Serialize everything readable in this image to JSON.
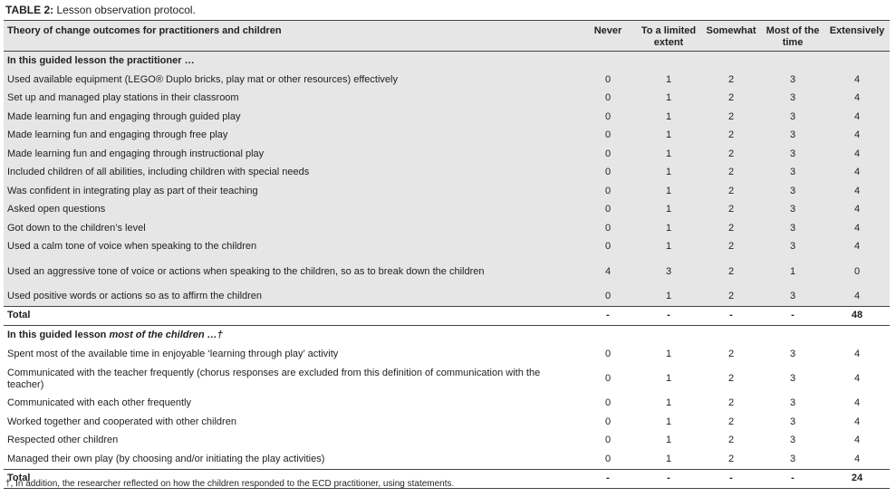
{
  "title": {
    "label": "TABLE 2:",
    "text": "Lesson observation protocol."
  },
  "table": {
    "columns": [
      "Theory of change outcomes for practitioners and children",
      "Never",
      "To a limited extent",
      "Somewhat",
      "Most of the time",
      "Extensively"
    ],
    "sections": [
      {
        "heading": "In this guided lesson the practitioner …",
        "rows": [
          {
            "label": "Used available equipment (LEGO® Duplo bricks, play mat or other resources) effectively",
            "values": [
              0,
              1,
              2,
              3,
              4
            ]
          },
          {
            "label": "Set up and managed play stations in their classroom",
            "values": [
              0,
              1,
              2,
              3,
              4
            ]
          },
          {
            "label": "Made learning fun and engaging through guided play",
            "values": [
              0,
              1,
              2,
              3,
              4
            ]
          },
          {
            "label": "Made learning fun and engaging through free play",
            "values": [
              0,
              1,
              2,
              3,
              4
            ]
          },
          {
            "label": "Made learning fun and engaging through instructional play",
            "values": [
              0,
              1,
              2,
              3,
              4
            ]
          },
          {
            "label": "Included children of all abilities, including children with special needs",
            "values": [
              0,
              1,
              2,
              3,
              4
            ]
          },
          {
            "label": "Was confident in integrating play as part of their teaching",
            "values": [
              0,
              1,
              2,
              3,
              4
            ]
          },
          {
            "label": "Asked open questions",
            "values": [
              0,
              1,
              2,
              3,
              4
            ]
          },
          {
            "label": "Got down to the children’s level",
            "values": [
              0,
              1,
              2,
              3,
              4
            ]
          },
          {
            "label": "Used a calm tone of voice when speaking to the children",
            "values": [
              0,
              1,
              2,
              3,
              4
            ]
          },
          {
            "label": "Used an aggressive tone of voice or actions when speaking to the children, so as to break down the children",
            "values": [
              4,
              3,
              2,
              1,
              0
            ]
          },
          {
            "label": "Used positive words or actions so as to affirm the children",
            "values": [
              0,
              1,
              2,
              3,
              4
            ]
          }
        ],
        "total": {
          "label": "Total",
          "values": [
            "-",
            "-",
            "-",
            "-",
            48
          ]
        }
      },
      {
        "heading": "In this guided lesson ",
        "heading_emphasis": "most of the children …†",
        "rows": [
          {
            "label": "Spent most of the available time in enjoyable ‘learning through play’ activity",
            "values": [
              0,
              1,
              2,
              3,
              4
            ]
          },
          {
            "label": "Communicated with the teacher frequently (chorus responses are excluded from this definition of communication with the teacher)",
            "values": [
              0,
              1,
              2,
              3,
              4
            ]
          },
          {
            "label": "Communicated with each other frequently",
            "values": [
              0,
              1,
              2,
              3,
              4
            ]
          },
          {
            "label": "Worked together and cooperated with other children",
            "values": [
              0,
              1,
              2,
              3,
              4
            ]
          },
          {
            "label": "Respected other children",
            "values": [
              0,
              1,
              2,
              3,
              4
            ]
          },
          {
            "label": "Managed their own play (by choosing and/or initiating the play activities)",
            "values": [
              0,
              1,
              2,
              3,
              4
            ]
          }
        ],
        "total": {
          "label": "Total",
          "values": [
            "-",
            "-",
            "-",
            "-",
            24
          ]
        }
      }
    ]
  },
  "footnote": "†, In addition, the researcher reflected on how the children responded to the ECD practitioner, using statements."
}
